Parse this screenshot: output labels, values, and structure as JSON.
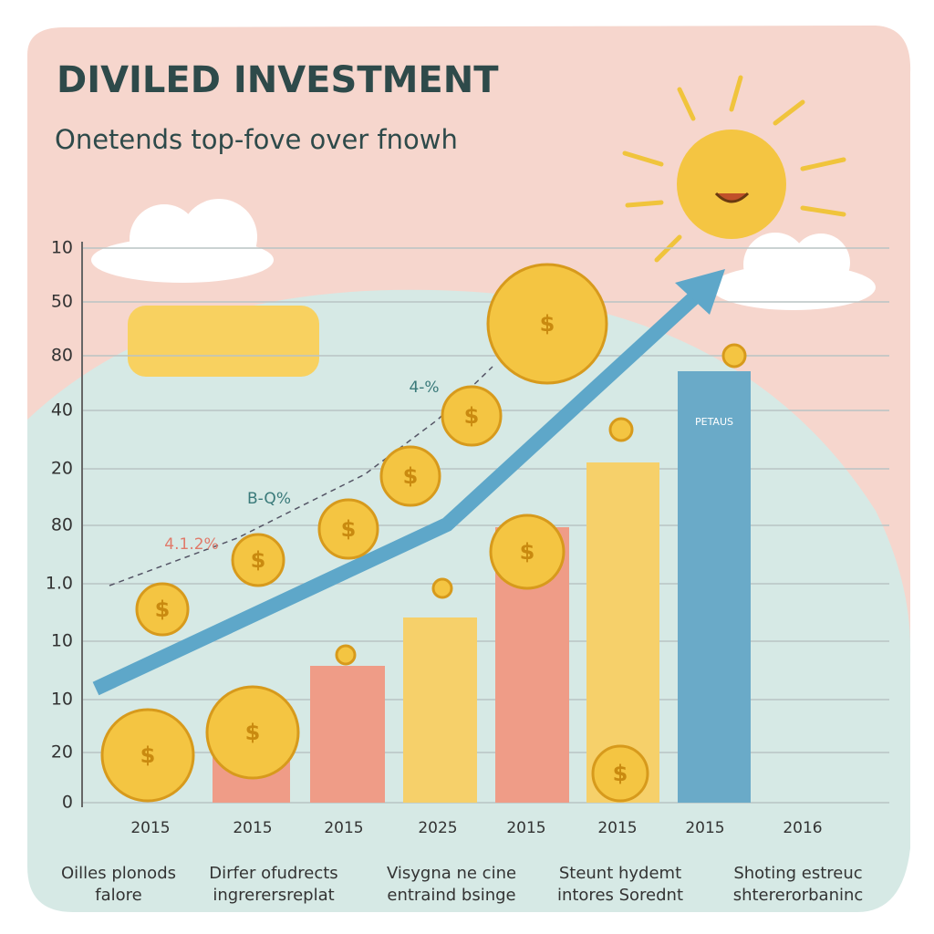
{
  "header": {
    "title": "DIVILED INVESTMENT",
    "subtitle": "Onetends top-fove over fnowh"
  },
  "y_axis_labels": [
    "10",
    "50",
    "80",
    "40",
    "20",
    "80",
    "1.0",
    "10",
    "10",
    "20",
    "0"
  ],
  "x_labels": [
    "2015",
    "2015",
    "2015",
    "2025",
    "2015",
    "2015",
    "2015",
    "2016"
  ],
  "captions": [
    [
      "Oilles plonods",
      "falore"
    ],
    [
      "Dirfer ofudrects",
      "ingrerersreplat"
    ],
    [
      "Visygna ne cine",
      "entraind bsinge"
    ],
    [
      "Steunt hydemt",
      "intores Sorednt"
    ],
    [
      "Shoting estreuc",
      "shtererorbaninc"
    ]
  ],
  "annotations": [
    "4-%",
    "B-Q%",
    "4.1.2%"
  ],
  "bar_label": "PETAUS",
  "coin_symbol": "$"
}
